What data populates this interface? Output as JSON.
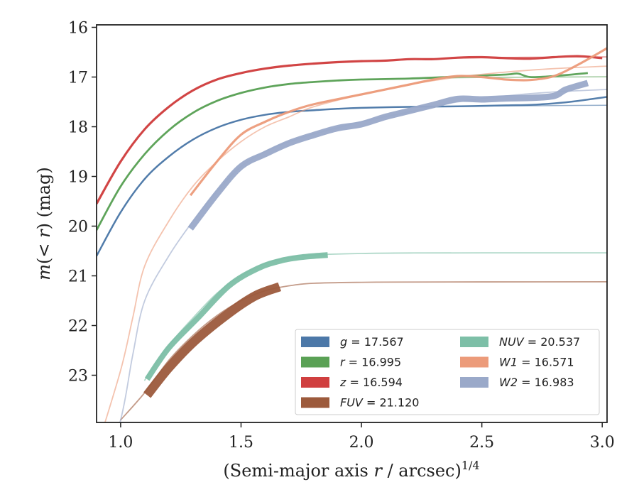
{
  "chart_data": {
    "type": "line",
    "title": "",
    "xlabel": {
      "main": "(Semi-major axis ",
      "var": "r",
      "rest": " / arcsec)",
      "sup": "1/4"
    },
    "ylabel": {
      "pre": "m",
      "mid": "(< ",
      "var": "r",
      "post": ") (mag)"
    },
    "xlim": [
      0.9,
      3.02
    ],
    "ylim": [
      23.95,
      15.95
    ],
    "y_inverted": true,
    "grid": false,
    "legend_position": "lower-right",
    "xticks": [
      1.0,
      1.5,
      2.0,
      2.5,
      3.0
    ],
    "xtick_labels": [
      "1.0",
      "1.5",
      "2.0",
      "2.5",
      "3.0"
    ],
    "yticks": [
      16,
      17,
      18,
      19,
      20,
      21,
      22,
      23
    ],
    "ytick_labels": [
      "16",
      "17",
      "18",
      "19",
      "20",
      "21",
      "22",
      "23"
    ],
    "series": [
      {
        "band": "g",
        "var": "g",
        "value": "17.567",
        "color": "#4c78a8",
        "model": {
          "x": [
            0.9,
            1.0,
            1.1,
            1.2,
            1.3,
            1.4,
            1.5,
            1.6,
            1.7,
            1.8,
            1.9,
            2.0,
            2.2,
            2.4,
            2.6,
            2.8,
            3.02
          ],
          "y": [
            20.6,
            19.72,
            19.05,
            18.6,
            18.26,
            18.02,
            17.86,
            17.76,
            17.7,
            17.66,
            17.64,
            17.62,
            17.6,
            17.59,
            17.58,
            17.575,
            17.567
          ]
        },
        "model_width": 1.5,
        "data": {
          "x": [
            0.9,
            1.0,
            1.1,
            1.2,
            1.3,
            1.4,
            1.5,
            1.6,
            1.7,
            1.8,
            1.9,
            2.0,
            2.2,
            2.4,
            2.6,
            2.7,
            2.8,
            2.9,
            3.02
          ],
          "y": [
            20.6,
            19.72,
            19.05,
            18.6,
            18.26,
            18.02,
            17.86,
            17.76,
            17.7,
            17.67,
            17.64,
            17.62,
            17.6,
            17.59,
            17.57,
            17.56,
            17.53,
            17.48,
            17.4
          ]
        },
        "data_width": 2.5
      },
      {
        "band": "r",
        "var": "r",
        "value": "16.995",
        "color": "#5aa155",
        "model": {
          "x": [
            0.9,
            1.0,
            1.1,
            1.2,
            1.3,
            1.4,
            1.5,
            1.6,
            1.7,
            1.8,
            1.9,
            2.0,
            2.2,
            2.4,
            2.6,
            2.8,
            3.02
          ],
          "y": [
            20.08,
            19.2,
            18.55,
            18.07,
            17.72,
            17.48,
            17.32,
            17.21,
            17.14,
            17.1,
            17.07,
            17.05,
            17.03,
            17.015,
            17.005,
            17.0,
            16.995
          ]
        },
        "model_width": 1.5,
        "data": {
          "x": [
            0.9,
            1.0,
            1.1,
            1.2,
            1.3,
            1.4,
            1.5,
            1.6,
            1.7,
            1.8,
            1.9,
            2.0,
            2.2,
            2.4,
            2.6,
            2.65,
            2.7,
            2.8,
            2.94
          ],
          "y": [
            20.08,
            19.2,
            18.55,
            18.07,
            17.72,
            17.48,
            17.32,
            17.21,
            17.14,
            17.1,
            17.07,
            17.05,
            17.03,
            16.99,
            16.95,
            16.93,
            17.0,
            16.98,
            16.92
          ]
        },
        "data_width": 2.8
      },
      {
        "band": "z",
        "var": "z",
        "value": "16.594",
        "color": "#d03f3f",
        "model": {
          "x": [
            0.9,
            1.0,
            1.1,
            1.2,
            1.3,
            1.4,
            1.5,
            1.6,
            1.7,
            1.8,
            1.9,
            2.0,
            2.2,
            2.4,
            2.6,
            2.8,
            3.02
          ],
          "y": [
            19.55,
            18.7,
            18.05,
            17.6,
            17.27,
            17.05,
            16.92,
            16.83,
            16.77,
            16.73,
            16.7,
            16.68,
            16.65,
            16.62,
            16.605,
            16.598,
            16.594
          ]
        },
        "model_width": 1.5,
        "data": {
          "x": [
            0.9,
            1.0,
            1.1,
            1.2,
            1.3,
            1.4,
            1.5,
            1.6,
            1.7,
            1.8,
            1.9,
            2.0,
            2.1,
            2.2,
            2.3,
            2.4,
            2.5,
            2.6,
            2.7,
            2.8,
            2.9,
            3.0
          ],
          "y": [
            19.55,
            18.7,
            18.05,
            17.6,
            17.27,
            17.05,
            16.92,
            16.83,
            16.77,
            16.73,
            16.7,
            16.68,
            16.67,
            16.64,
            16.64,
            16.61,
            16.6,
            16.62,
            16.63,
            16.6,
            16.58,
            16.62
          ]
        },
        "data_width": 3.2
      },
      {
        "band": "FUV",
        "var": "FUV",
        "value": "21.120",
        "color": "#9c5a3c",
        "model": {
          "x": [
            1.0,
            1.1,
            1.2,
            1.3,
            1.4,
            1.5,
            1.6,
            1.7,
            1.8,
            2.0,
            2.2,
            2.5,
            3.02
          ],
          "y": [
            23.9,
            23.35,
            22.7,
            22.2,
            21.8,
            21.5,
            21.3,
            21.2,
            21.15,
            21.13,
            21.125,
            21.122,
            21.12
          ]
        },
        "model_width": 1.8,
        "data": {
          "x": [
            1.11,
            1.2,
            1.31,
            1.45,
            1.56,
            1.66
          ],
          "y": [
            23.4,
            22.85,
            22.3,
            21.75,
            21.4,
            21.22
          ]
        },
        "data_width": 13
      },
      {
        "band": "NUV",
        "var": "NUV",
        "value": "20.537",
        "color": "#7dbfa7",
        "model": {
          "x": [
            1.1,
            1.2,
            1.3,
            1.4,
            1.5,
            1.6,
            1.7,
            1.8,
            2.0,
            2.2,
            2.5,
            3.02
          ],
          "y": [
            23.1,
            22.4,
            21.85,
            21.35,
            21.0,
            20.75,
            20.63,
            20.58,
            20.55,
            20.54,
            20.538,
            20.537
          ]
        },
        "model_width": 1.8,
        "data": {
          "x": [
            1.11,
            1.2,
            1.32,
            1.45,
            1.57,
            1.67,
            1.76,
            1.86
          ],
          "y": [
            23.08,
            22.45,
            21.85,
            21.2,
            20.85,
            20.69,
            20.62,
            20.58
          ]
        },
        "data_width": 8
      },
      {
        "band": "W1",
        "var": "W1",
        "value": "16.571",
        "color": "#ec9b7a",
        "model": {
          "x": [
            0.9,
            1.0,
            1.05,
            1.1,
            1.2,
            1.3,
            1.4,
            1.5,
            1.6,
            1.7,
            1.8,
            2.0,
            2.2,
            2.4,
            2.6,
            2.8,
            3.02
          ],
          "y": [
            24.5,
            22.9,
            21.85,
            20.8,
            19.9,
            19.2,
            18.7,
            18.3,
            18.0,
            17.8,
            17.6,
            17.35,
            17.15,
            17.0,
            16.9,
            16.83,
            16.78
          ]
        },
        "model_width": 1.8,
        "data": {
          "x": [
            1.29,
            1.4,
            1.5,
            1.6,
            1.7,
            1.8,
            2.0,
            2.2,
            2.3,
            2.4,
            2.5,
            2.6,
            2.7,
            2.8,
            2.9,
            3.02
          ],
          "y": [
            19.38,
            18.7,
            18.16,
            17.9,
            17.7,
            17.55,
            17.35,
            17.15,
            17.05,
            16.98,
            17.0,
            17.05,
            17.06,
            16.98,
            16.75,
            16.42
          ]
        },
        "data_width": 3.2
      },
      {
        "band": "W2",
        "var": "W2",
        "value": "16.983",
        "color": "#9aa9c9",
        "model": {
          "x": [
            0.9,
            1.0,
            1.05,
            1.1,
            1.2,
            1.3,
            1.4,
            1.5,
            1.6,
            1.7,
            1.8,
            2.0,
            2.2,
            2.4,
            2.6,
            2.8,
            3.02
          ],
          "y": [
            25.5,
            23.9,
            22.6,
            21.5,
            20.6,
            19.9,
            19.3,
            18.8,
            18.5,
            18.3,
            18.15,
            17.9,
            17.7,
            17.5,
            17.38,
            17.3,
            17.25
          ]
        },
        "model_width": 1.8,
        "data": {
          "x": [
            1.29,
            1.4,
            1.5,
            1.6,
            1.7,
            1.8,
            1.9,
            2.0,
            2.1,
            2.2,
            2.3,
            2.4,
            2.5,
            2.6,
            2.7,
            2.8,
            2.85,
            2.94
          ],
          "y": [
            20.05,
            19.35,
            18.8,
            18.55,
            18.33,
            18.17,
            18.03,
            17.95,
            17.8,
            17.68,
            17.56,
            17.44,
            17.45,
            17.43,
            17.42,
            17.38,
            17.25,
            17.12
          ]
        },
        "data_width": 9
      }
    ],
    "legend": [
      {
        "var": "g",
        "value": "17.567",
        "color": "#4c78a8"
      },
      {
        "var": "r",
        "value": "16.995",
        "color": "#5aa155"
      },
      {
        "var": "z",
        "value": "16.594",
        "color": "#d03f3f"
      },
      {
        "var": "FUV",
        "value": "21.120",
        "color": "#9c5a3c"
      },
      {
        "var": "NUV",
        "value": "20.537",
        "color": "#7dbfa7"
      },
      {
        "var": "W1",
        "value": "16.571",
        "color": "#ec9b7a"
      },
      {
        "var": "W2",
        "value": "16.983",
        "color": "#9aa9c9"
      }
    ]
  }
}
